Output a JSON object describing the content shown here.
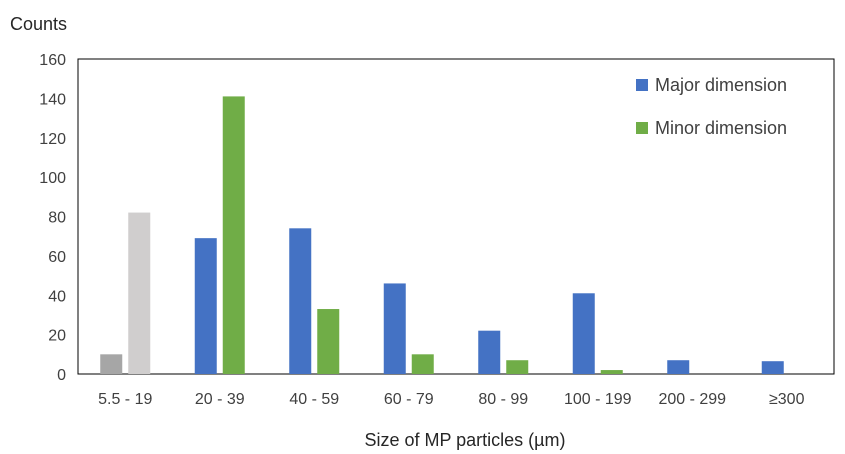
{
  "chart_data": {
    "type": "bar",
    "title": "",
    "ylabel": "Counts",
    "xlabel": "Size of MP particles (µm)",
    "ylim": [
      0,
      160
    ],
    "yticks": [
      0,
      20,
      40,
      60,
      80,
      100,
      120,
      140,
      160
    ],
    "grid": false,
    "legend_position": "top-right",
    "categories": [
      "5.5 - 19",
      "20 - 39",
      "40 - 59",
      "60 - 79",
      "80 - 99",
      "100 - 199",
      "200 - 299",
      "≥300"
    ],
    "series": [
      {
        "name": "Major dimension",
        "color": "#4472C4",
        "values": [
          10,
          69,
          74,
          46,
          22,
          41,
          7,
          6.5
        ],
        "point_colors": [
          "#A6A6A6",
          null,
          null,
          null,
          null,
          null,
          null,
          null
        ]
      },
      {
        "name": "Minor dimension",
        "color": "#70AD47",
        "values": [
          82,
          141,
          33,
          10,
          7,
          2,
          0,
          0
        ],
        "point_colors": [
          "#D0CECE",
          null,
          null,
          null,
          null,
          null,
          null,
          null
        ]
      }
    ]
  }
}
